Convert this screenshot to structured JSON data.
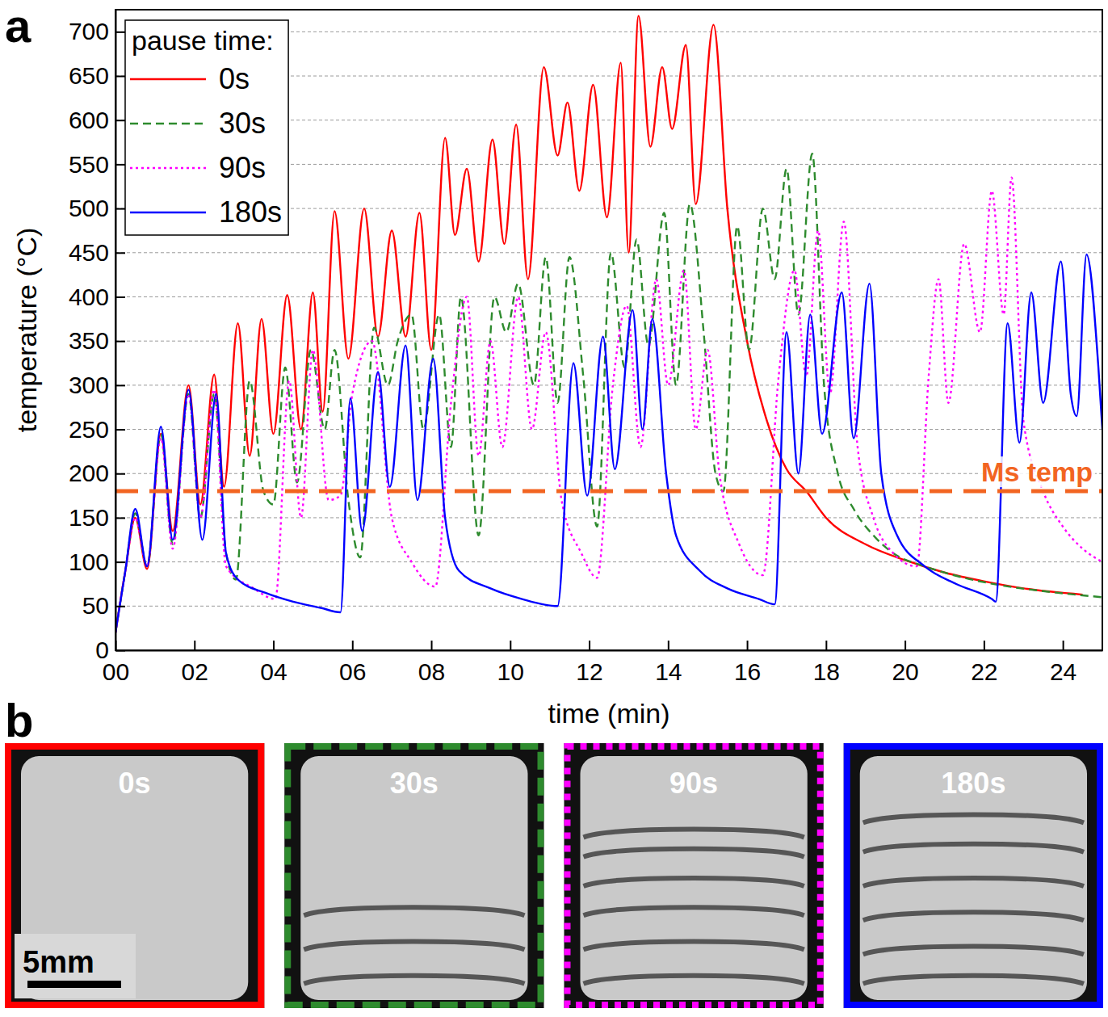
{
  "chart_data": {
    "type": "line",
    "panel_label": "a",
    "x_label": "time (min)",
    "y_label": "temperature (°C)",
    "xlim": [
      0,
      25
    ],
    "ylim": [
      0,
      725
    ],
    "xticks": [
      {
        "value": 0,
        "label": "00"
      },
      {
        "value": 2,
        "label": "02"
      },
      {
        "value": 4,
        "label": "04"
      },
      {
        "value": 6,
        "label": "06"
      },
      {
        "value": 8,
        "label": "08"
      },
      10,
      12,
      14,
      16,
      18,
      20,
      22,
      24
    ],
    "yticks": [
      0,
      50,
      100,
      150,
      200,
      250,
      300,
      350,
      400,
      450,
      500,
      550,
      600,
      650,
      700
    ],
    "grid": true,
    "legend": "upper left",
    "legend_title": "pause time:",
    "annotations": [
      {
        "text": "Ms temp",
        "y": 180,
        "color": "#f26522",
        "line_style": "dashed"
      }
    ],
    "series": [
      {
        "name": "0s",
        "color": "#ff0000",
        "line_style": "solid",
        "x": [
          0,
          0.25,
          0.5,
          0.8,
          1.15,
          1.45,
          1.85,
          2.15,
          2.5,
          2.75,
          3.1,
          3.4,
          3.7,
          4.0,
          4.35,
          4.7,
          5.0,
          5.25,
          5.55,
          5.9,
          6.3,
          6.65,
          7.0,
          7.35,
          7.7,
          8.0,
          8.35,
          8.6,
          8.9,
          9.2,
          9.55,
          9.85,
          10.15,
          10.45,
          10.85,
          11.2,
          11.45,
          11.75,
          12.1,
          12.45,
          12.8,
          13.0,
          13.25,
          13.55,
          13.85,
          14.1,
          14.45,
          14.7,
          15.15,
          15.5,
          16.0,
          16.5,
          17.0,
          17.5,
          18.0,
          19.0,
          20.0,
          21.0,
          22.0,
          23.0,
          24.5
        ],
        "values": [
          20,
          90,
          150,
          92,
          245,
          135,
          300,
          165,
          312,
          185,
          370,
          220,
          375,
          245,
          402,
          250,
          405,
          270,
          497,
          330,
          500,
          355,
          475,
          355,
          495,
          340,
          580,
          470,
          545,
          440,
          578,
          460,
          595,
          420,
          660,
          560,
          620,
          520,
          640,
          490,
          665,
          450,
          718,
          570,
          660,
          590,
          685,
          505,
          708,
          500,
          350,
          260,
          205,
          180,
          150,
          120,
          102,
          88,
          78,
          70,
          63
        ]
      },
      {
        "name": "30s",
        "color": "#2e8b2e",
        "line_style": "dashed",
        "x": [
          0,
          0.25,
          0.5,
          0.8,
          1.15,
          1.45,
          1.85,
          2.15,
          2.5,
          2.8,
          3.05,
          3.4,
          3.75,
          4.0,
          4.3,
          4.6,
          4.95,
          5.3,
          5.55,
          5.9,
          6.2,
          6.55,
          6.9,
          7.15,
          7.5,
          7.8,
          8.2,
          8.5,
          8.75,
          9.2,
          9.6,
          9.9,
          10.2,
          10.6,
          10.9,
          11.2,
          11.5,
          11.85,
          12.2,
          12.55,
          12.9,
          13.2,
          13.5,
          13.9,
          14.2,
          14.55,
          14.9,
          15.2,
          15.4,
          15.75,
          16.05,
          16.4,
          16.7,
          17.0,
          17.3,
          17.65,
          17.95,
          18.3,
          18.7,
          19.2,
          19.7,
          20.5,
          21.5,
          22.5,
          23.5,
          25
        ],
        "values": [
          20,
          90,
          155,
          95,
          245,
          120,
          290,
          150,
          290,
          110,
          80,
          305,
          180,
          165,
          320,
          190,
          340,
          250,
          340,
          170,
          105,
          365,
          300,
          350,
          380,
          250,
          380,
          230,
          400,
          130,
          400,
          360,
          415,
          300,
          445,
          280,
          445,
          310,
          140,
          450,
          320,
          465,
          345,
          495,
          300,
          505,
          360,
          200,
          180,
          480,
          340,
          500,
          420,
          545,
          380,
          562,
          300,
          200,
          160,
          130,
          110,
          95,
          82,
          73,
          67,
          60
        ]
      },
      {
        "name": "90s",
        "color": "#ff00ff",
        "line_style": "dotted",
        "x": [
          0,
          0.25,
          0.5,
          0.8,
          1.15,
          1.45,
          1.85,
          2.15,
          2.5,
          2.8,
          3.5,
          4.05,
          4.4,
          4.7,
          5.0,
          5.4,
          5.7,
          6.0,
          6.5,
          7.0,
          7.5,
          8.1,
          8.5,
          8.9,
          9.2,
          9.5,
          9.8,
          10.2,
          10.55,
          10.9,
          11.3,
          11.8,
          12.2,
          12.6,
          12.95,
          13.3,
          13.7,
          14.0,
          14.4,
          14.7,
          15.0,
          15.3,
          15.8,
          16.4,
          16.8,
          17.2,
          17.5,
          17.8,
          18.1,
          18.45,
          18.8,
          19.2,
          19.7,
          20.3,
          20.6,
          20.85,
          21.1,
          21.5,
          21.9,
          22.2,
          22.5,
          22.7,
          23.0,
          23.5,
          24.0,
          24.5,
          25
        ],
        "values": [
          20,
          90,
          150,
          95,
          240,
          115,
          290,
          150,
          295,
          95,
          70,
          58,
          305,
          150,
          340,
          170,
          175,
          290,
          350,
          150,
          100,
          72,
          280,
          400,
          220,
          350,
          230,
          400,
          250,
          360,
          170,
          110,
          82,
          300,
          390,
          230,
          420,
          300,
          430,
          250,
          340,
          200,
          120,
          85,
          310,
          430,
          310,
          475,
          290,
          485,
          230,
          150,
          110,
          95,
          310,
          420,
          280,
          460,
          360,
          520,
          380,
          535,
          260,
          180,
          140,
          115,
          100
        ]
      },
      {
        "name": "180s",
        "color": "#0000ff",
        "line_style": "solid",
        "x": [
          0,
          0.25,
          0.5,
          0.8,
          1.15,
          1.45,
          1.85,
          2.2,
          2.55,
          2.8,
          3.1,
          3.8,
          4.5,
          5.2,
          5.7,
          5.95,
          6.25,
          6.65,
          6.95,
          7.35,
          7.65,
          8.05,
          8.35,
          8.7,
          9.5,
          10.3,
          11.2,
          11.6,
          11.95,
          12.35,
          12.65,
          13.1,
          13.35,
          13.6,
          13.95,
          14.2,
          14.8,
          15.5,
          16.3,
          16.7,
          17.0,
          17.3,
          17.6,
          17.9,
          18.4,
          18.7,
          19.1,
          19.4,
          19.8,
          20.5,
          21.3,
          22.2,
          22.3,
          22.6,
          22.9,
          23.2,
          23.5,
          23.95,
          24.2,
          24.35,
          24.6,
          24.9,
          25
        ],
        "values": [
          20,
          90,
          160,
          95,
          253,
          125,
          295,
          125,
          290,
          110,
          80,
          65,
          55,
          48,
          43,
          285,
          135,
          315,
          185,
          345,
          170,
          330,
          150,
          90,
          70,
          58,
          50,
          325,
          175,
          355,
          205,
          385,
          250,
          375,
          200,
          130,
          90,
          70,
          58,
          52,
          360,
          200,
          380,
          245,
          405,
          240,
          415,
          200,
          130,
          95,
          75,
          58,
          55,
          370,
          235,
          405,
          280,
          440,
          290,
          265,
          448,
          320,
          250
        ]
      }
    ]
  },
  "panel_b": {
    "label": "b",
    "scale_bar": "5mm",
    "images": [
      {
        "title": "0s",
        "color": "#ff0000",
        "line_style": "solid"
      },
      {
        "title": "30s",
        "color": "#2e8b2e",
        "line_style": "dashed"
      },
      {
        "title": "90s",
        "color": "#ff00ff",
        "line_style": "dotted"
      },
      {
        "title": "180s",
        "color": "#0000ff",
        "line_style": "solid"
      }
    ]
  }
}
